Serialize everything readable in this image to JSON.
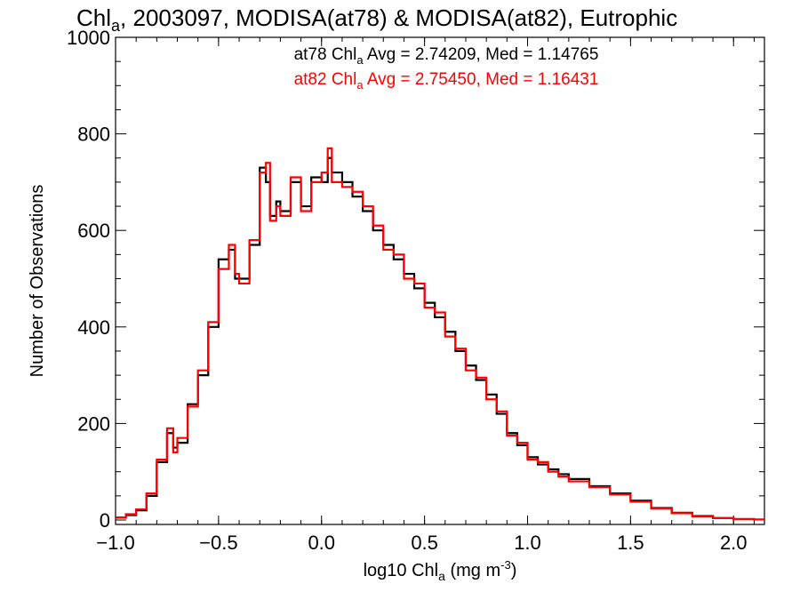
{
  "chart_data": {
    "type": "line",
    "style": "step",
    "title": {
      "prefix": "Chl",
      "sub": "a",
      "rest": ", 2003097, MODISA(at78) & MODISA(at82), Eutrophic"
    },
    "xlabel": {
      "prefix": "log10 Chl",
      "sub": "a",
      "rest": " (mg m",
      "sup": "-3",
      "end": ")"
    },
    "ylabel": "Number of Observations",
    "xlim": [
      -1.0,
      2.15
    ],
    "ylim": [
      0,
      1000
    ],
    "x_ticks": [
      -1.0,
      -0.5,
      0.0,
      0.5,
      1.0,
      1.5,
      2.0
    ],
    "x_tick_labels": [
      "−1.0",
      "−0.5",
      "0.0",
      "0.5",
      "1.0",
      "1.5",
      "2.0"
    ],
    "y_ticks": [
      0,
      200,
      400,
      600,
      800,
      1000
    ],
    "y_tick_labels": [
      "0",
      "200",
      "400",
      "600",
      "800",
      "1000"
    ],
    "grid": false,
    "annotations": [
      {
        "prefix": "at78 Chl",
        "sub": "a",
        "rest": " Avg = 2.74209, Med = 1.14765",
        "color": "#000000"
      },
      {
        "prefix": "at82 Chl",
        "sub": "a",
        "rest": " Avg = 2.75450, Med = 1.16431",
        "color": "#ff0000"
      }
    ],
    "x": [
      -1.0,
      -0.95,
      -0.9,
      -0.85,
      -0.8,
      -0.75,
      -0.72,
      -0.7,
      -0.65,
      -0.6,
      -0.55,
      -0.5,
      -0.45,
      -0.42,
      -0.4,
      -0.35,
      -0.3,
      -0.27,
      -0.25,
      -0.22,
      -0.2,
      -0.15,
      -0.1,
      -0.05,
      0.0,
      0.03,
      0.05,
      0.1,
      0.15,
      0.2,
      0.25,
      0.3,
      0.35,
      0.4,
      0.45,
      0.5,
      0.55,
      0.6,
      0.65,
      0.7,
      0.75,
      0.8,
      0.85,
      0.9,
      0.95,
      1.0,
      1.05,
      1.1,
      1.15,
      1.2,
      1.3,
      1.4,
      1.5,
      1.6,
      1.7,
      1.8,
      1.9,
      2.0,
      2.1
    ],
    "series": [
      {
        "name": "at78",
        "color": "#000000",
        "values": [
          5,
          10,
          20,
          50,
          120,
          180,
          150,
          160,
          240,
          300,
          400,
          540,
          560,
          500,
          500,
          570,
          730,
          700,
          630,
          660,
          640,
          700,
          650,
          710,
          700,
          750,
          720,
          700,
          670,
          640,
          600,
          570,
          540,
          510,
          480,
          450,
          420,
          390,
          350,
          320,
          290,
          260,
          220,
          180,
          155,
          130,
          115,
          105,
          95,
          85,
          70,
          55,
          40,
          25,
          15,
          8,
          4,
          2,
          1
        ]
      },
      {
        "name": "at82",
        "color": "#ff0000",
        "values": [
          5,
          12,
          22,
          55,
          125,
          190,
          140,
          170,
          235,
          310,
          410,
          520,
          570,
          510,
          490,
          580,
          720,
          740,
          620,
          650,
          630,
          710,
          640,
          700,
          720,
          770,
          700,
          690,
          680,
          650,
          610,
          560,
          550,
          500,
          490,
          440,
          430,
          380,
          355,
          310,
          295,
          250,
          225,
          175,
          160,
          125,
          120,
          100,
          90,
          80,
          68,
          53,
          38,
          24,
          14,
          7,
          4,
          2,
          1
        ]
      }
    ]
  }
}
